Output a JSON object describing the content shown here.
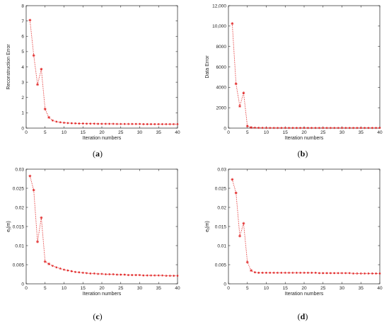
{
  "chart_data": [
    {
      "type": "line",
      "caption_letter": "a",
      "xlabel": "Iteration numbers",
      "ylabel": "Reconstruction Error",
      "xlim": [
        0,
        40
      ],
      "ylim": [
        0,
        8
      ],
      "xticks": [
        0,
        5,
        10,
        15,
        20,
        25,
        30,
        35,
        40
      ],
      "yticks": [
        0,
        1,
        2,
        3,
        4,
        5,
        6,
        7,
        8
      ],
      "ytick_labels": [
        "0",
        "1",
        "2",
        "3",
        "4",
        "5",
        "6",
        "7",
        "8"
      ],
      "series": [
        {
          "color": "#e02020",
          "marker": "asterisk",
          "line_style": "dotted",
          "x": [
            1,
            2,
            3,
            4,
            5,
            6,
            7,
            8,
            9,
            10,
            11,
            12,
            13,
            14,
            15,
            16,
            17,
            18,
            19,
            20,
            21,
            22,
            23,
            24,
            25,
            26,
            27,
            28,
            29,
            30,
            31,
            32,
            33,
            34,
            35,
            36,
            37,
            38,
            39,
            40
          ],
          "y": [
            7.05,
            4.75,
            2.85,
            3.85,
            1.25,
            0.7,
            0.5,
            0.42,
            0.38,
            0.35,
            0.33,
            0.32,
            0.31,
            0.3,
            0.3,
            0.29,
            0.29,
            0.29,
            0.28,
            0.28,
            0.28,
            0.28,
            0.28,
            0.27,
            0.27,
            0.27,
            0.27,
            0.27,
            0.27,
            0.27,
            0.26,
            0.26,
            0.26,
            0.26,
            0.26,
            0.26,
            0.26,
            0.26,
            0.26,
            0.26
          ]
        }
      ]
    },
    {
      "type": "line",
      "caption_letter": "b",
      "xlabel": "Iteration numbers",
      "ylabel": "Data Error",
      "xlim": [
        0,
        40
      ],
      "ylim": [
        0,
        12000
      ],
      "xticks": [
        0,
        5,
        10,
        15,
        20,
        25,
        30,
        35,
        40
      ],
      "yticks": [
        0,
        2000,
        4000,
        6000,
        8000,
        10000,
        12000
      ],
      "ytick_labels": [
        "0",
        "2000",
        "4000",
        "6000",
        "8000",
        "10,000",
        "12,000"
      ],
      "series": [
        {
          "color": "#e02020",
          "marker": "asterisk",
          "line_style": "dotted",
          "x": [
            1,
            2,
            3,
            4,
            5,
            6,
            7,
            8,
            9,
            10,
            11,
            12,
            13,
            14,
            15,
            16,
            17,
            18,
            19,
            20,
            21,
            22,
            23,
            24,
            25,
            26,
            27,
            28,
            29,
            30,
            31,
            32,
            33,
            34,
            35,
            36,
            37,
            38,
            39,
            40
          ],
          "y": [
            10250,
            4350,
            2150,
            3450,
            200,
            60,
            40,
            30,
            25,
            20,
            20,
            20,
            20,
            20,
            20,
            20,
            20,
            20,
            20,
            20,
            20,
            20,
            20,
            20,
            20,
            20,
            20,
            20,
            20,
            20,
            20,
            20,
            20,
            20,
            20,
            20,
            20,
            20,
            20,
            20
          ]
        }
      ]
    },
    {
      "type": "line",
      "caption_letter": "c",
      "xlabel": "Iteration numbers",
      "ylabel": "e",
      "ylabel_sub": "f",
      "ylabel_tail": "(m)",
      "xlim": [
        0,
        40
      ],
      "ylim": [
        0,
        0.03
      ],
      "xticks": [
        0,
        5,
        10,
        15,
        20,
        25,
        30,
        35,
        40
      ],
      "yticks": [
        0,
        0.005,
        0.01,
        0.015,
        0.02,
        0.025,
        0.03
      ],
      "ytick_labels": [
        "0",
        "0.005",
        "0.01",
        "0.015",
        "0.02",
        "0.025",
        "0.03"
      ],
      "series": [
        {
          "color": "#e02020",
          "marker": "asterisk",
          "line_style": "dotted",
          "x": [
            1,
            2,
            3,
            4,
            5,
            6,
            7,
            8,
            9,
            10,
            11,
            12,
            13,
            14,
            15,
            16,
            17,
            18,
            19,
            20,
            21,
            22,
            23,
            24,
            25,
            26,
            27,
            28,
            29,
            30,
            31,
            32,
            33,
            34,
            35,
            36,
            37,
            38,
            39,
            40
          ],
          "y": [
            0.0282,
            0.0245,
            0.011,
            0.0173,
            0.0058,
            0.0052,
            0.0047,
            0.0043,
            0.004,
            0.0037,
            0.0035,
            0.0033,
            0.0031,
            0.003,
            0.0029,
            0.0028,
            0.0027,
            0.0027,
            0.0026,
            0.0026,
            0.0025,
            0.0025,
            0.0025,
            0.0024,
            0.0024,
            0.0024,
            0.0023,
            0.0023,
            0.0023,
            0.0023,
            0.0022,
            0.0022,
            0.0022,
            0.0022,
            0.0022,
            0.0022,
            0.0021,
            0.0021,
            0.0021,
            0.0021
          ]
        }
      ]
    },
    {
      "type": "line",
      "caption_letter": "d",
      "xlabel": "Iteration numbers",
      "ylabel": "e",
      "ylabel_sub": "f",
      "ylabel_tail": "(m)",
      "xlim": [
        0,
        40
      ],
      "ylim": [
        0,
        0.03
      ],
      "xticks": [
        0,
        5,
        10,
        15,
        20,
        25,
        30,
        35,
        40
      ],
      "yticks": [
        0,
        0.005,
        0.01,
        0.015,
        0.02,
        0.025,
        0.03
      ],
      "ytick_labels": [
        "0",
        "0.005",
        "0.01",
        "0.015",
        "0.02",
        "0.025",
        "0.03"
      ],
      "series": [
        {
          "color": "#e02020",
          "marker": "asterisk",
          "line_style": "dotted",
          "x": [
            1,
            2,
            3,
            4,
            5,
            6,
            7,
            8,
            9,
            10,
            11,
            12,
            13,
            14,
            15,
            16,
            17,
            18,
            19,
            20,
            21,
            22,
            23,
            24,
            25,
            26,
            27,
            28,
            29,
            30,
            31,
            32,
            33,
            34,
            35,
            36,
            37,
            38,
            39,
            40
          ],
          "y": [
            0.0273,
            0.0238,
            0.0125,
            0.0158,
            0.0057,
            0.0035,
            0.003,
            0.0029,
            0.0029,
            0.0029,
            0.0029,
            0.0029,
            0.0029,
            0.0029,
            0.0029,
            0.0029,
            0.0029,
            0.0029,
            0.0029,
            0.0029,
            0.0029,
            0.0029,
            0.0029,
            0.0028,
            0.0028,
            0.0028,
            0.0028,
            0.0028,
            0.0028,
            0.0028,
            0.0028,
            0.0028,
            0.0027,
            0.0027,
            0.0027,
            0.0027,
            0.0027,
            0.0027,
            0.0027,
            0.0027
          ]
        }
      ]
    }
  ]
}
